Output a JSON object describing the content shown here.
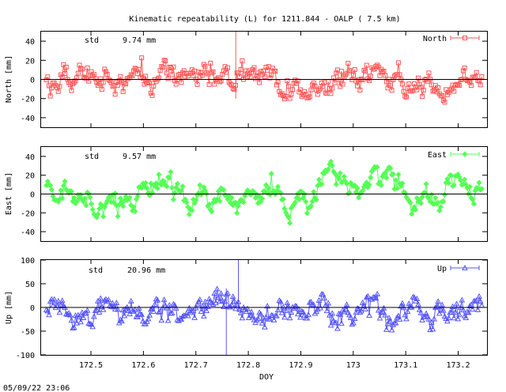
{
  "title": "Kinematic repeatability (L) for 1211.844 - OALP  ( 7.5 km)",
  "footer_timestamp": "05/09/22 23:06",
  "chart_data": [
    {
      "type": "scatter",
      "key": "north",
      "label": "North",
      "ylabel": "North [mm]",
      "std_label": "std",
      "std_value": "9.74 mm",
      "color": "#ff5555",
      "marker": "square",
      "xlim": [
        172.405,
        173.255
      ],
      "ylim": [
        -50,
        50
      ],
      "yticks": [
        -40,
        -20,
        0,
        20,
        40
      ],
      "xticks": [],
      "zero_line": true,
      "legend_position": "top-right",
      "std_dev": 9.74,
      "spikes": [
        {
          "x": 172.776,
          "y_from": -20,
          "y_to": 50
        }
      ],
      "x": [],
      "y": []
    },
    {
      "type": "scatter",
      "key": "east",
      "label": "East",
      "ylabel": "East [mm]",
      "std_label": "std",
      "std_value": "9.57 mm",
      "color": "#55ff55",
      "marker": "diamond",
      "xlim": [
        172.405,
        173.255
      ],
      "ylim": [
        -50,
        50
      ],
      "yticks": [
        -40,
        -20,
        0,
        20,
        40
      ],
      "xticks": [],
      "zero_line": true,
      "legend_position": "top-right",
      "std_dev": 9.57,
      "spikes": [],
      "x": [],
      "y": []
    },
    {
      "type": "scatter",
      "key": "up",
      "label": "Up",
      "ylabel": "Up [mm]",
      "xlabel": "DOY",
      "std_label": "std",
      "std_value": "20.96 mm",
      "color": "#5555ff",
      "marker": "triangle",
      "xlim": [
        172.405,
        173.255
      ],
      "ylim": [
        -100,
        100
      ],
      "yticks": [
        -100,
        -50,
        0,
        50,
        100
      ],
      "xticks": [
        "172.5",
        "172.6",
        "172.7",
        "172.8",
        "172.9",
        "173",
        "173.1",
        "173.2"
      ],
      "zero_line": true,
      "legend_position": "top-right",
      "std_dev": 20.96,
      "spikes": [
        {
          "x": 172.758,
          "y_from": -100,
          "y_to": 40
        },
        {
          "x": 172.781,
          "y_from": -10,
          "y_to": 100
        }
      ],
      "x": [],
      "y": []
    }
  ]
}
